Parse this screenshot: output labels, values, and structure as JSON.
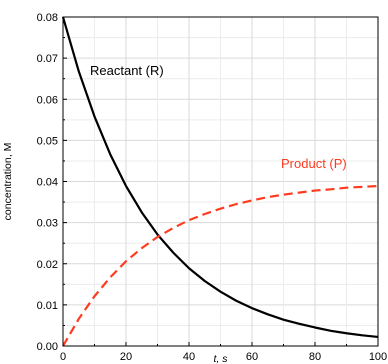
{
  "chart_data": {
    "type": "line",
    "xlabel": "t, s",
    "ylabel": "concentration, M",
    "xlim": [
      0,
      100
    ],
    "ylim": [
      0,
      0.08
    ],
    "x_ticks": [
      0,
      20,
      40,
      60,
      80,
      100
    ],
    "y_ticks": [
      0.0,
      0.01,
      0.02,
      0.03,
      0.04,
      0.05,
      0.06,
      0.07,
      0.08
    ],
    "x_tick_labels": [
      "0",
      "20",
      "40",
      "60",
      "80",
      "100"
    ],
    "y_tick_labels": [
      "0.00",
      "0.01",
      "0.02",
      "0.03",
      "0.04",
      "0.05",
      "0.06",
      "0.07",
      "0.08"
    ],
    "grid": true,
    "series": [
      {
        "name": "Reactant (R)",
        "color": "#000000",
        "line_style": "solid",
        "x": [
          0,
          5,
          10,
          15,
          20,
          25,
          30,
          35,
          40,
          45,
          50,
          55,
          60,
          65,
          70,
          75,
          80,
          85,
          90,
          95,
          100
        ],
        "y": [
          0.08,
          0.0668,
          0.0558,
          0.0466,
          0.0389,
          0.0325,
          0.0271,
          0.0227,
          0.0189,
          0.0158,
          0.0132,
          0.011,
          0.0092,
          0.0077,
          0.0064,
          0.0054,
          0.0045,
          0.0037,
          0.0031,
          0.0026,
          0.0022
        ]
      },
      {
        "name": "Product (P)",
        "color": "#ff3b1f",
        "line_style": "dashed",
        "x": [
          0,
          5,
          10,
          15,
          20,
          25,
          30,
          35,
          40,
          45,
          50,
          55,
          60,
          65,
          70,
          75,
          80,
          85,
          90,
          95,
          100
        ],
        "y": [
          0.0,
          0.0066,
          0.0121,
          0.0167,
          0.0206,
          0.0238,
          0.0265,
          0.0287,
          0.0306,
          0.0321,
          0.0334,
          0.0345,
          0.0354,
          0.0362,
          0.0368,
          0.0373,
          0.0378,
          0.0381,
          0.0385,
          0.0387,
          0.0389
        ]
      }
    ]
  }
}
